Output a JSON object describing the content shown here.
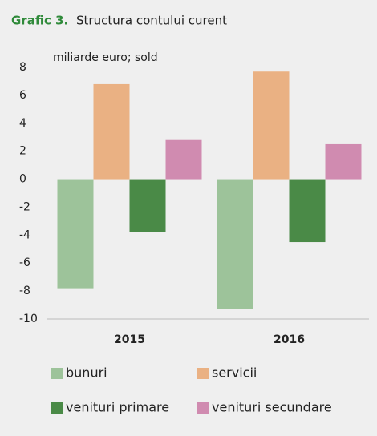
{
  "chart_data": {
    "type": "bar",
    "title_prefix": "Grafic 3.",
    "title": "Structura contului curent",
    "y_label": "miliarde euro; sold",
    "categories": [
      "2015",
      "2016"
    ],
    "series": [
      {
        "name": "bunuri",
        "color": "#9dc39a",
        "values": [
          -7.8,
          -9.3
        ]
      },
      {
        "name": "servicii",
        "color": "#eab183",
        "values": [
          6.8,
          7.7
        ]
      },
      {
        "name": "venituri primare",
        "color": "#4a8a47",
        "values": [
          -3.8,
          -4.5
        ]
      },
      {
        "name": "venituri secundare",
        "color": "#d08bb0",
        "values": [
          2.8,
          2.5
        ]
      }
    ],
    "ylim": [
      -10,
      8
    ],
    "yticks": [
      -10,
      -8,
      -6,
      -4,
      -2,
      0,
      2,
      4,
      6,
      8
    ],
    "grid": false
  }
}
